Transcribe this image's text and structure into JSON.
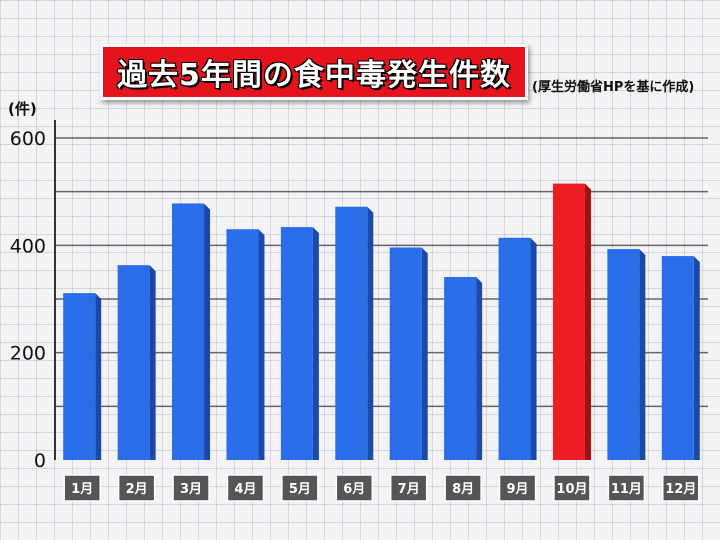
{
  "chart_data": {
    "type": "bar",
    "title": "過去5年間の食中毒発生件数",
    "subtitle": "(厚生労働省HPを基に作成)",
    "ylabel": "(件)",
    "categories": [
      "1月",
      "2月",
      "3月",
      "4月",
      "5月",
      "6月",
      "7月",
      "8月",
      "9月",
      "10月",
      "11月",
      "12月"
    ],
    "values": [
      311,
      363,
      478,
      430,
      434,
      472,
      396,
      341,
      414,
      515,
      393,
      380
    ],
    "ylim": [
      0,
      600
    ],
    "yticks": [
      0,
      200,
      400,
      600
    ],
    "highlight_index": 9,
    "grid": true,
    "colors": {
      "bar": "#2a6de8",
      "bar_side": "#1a4aa8",
      "highlight": "#ee1c24",
      "highlight_side": "#a50e12",
      "title_bg": "#e5141c",
      "label_box": "#555555"
    }
  }
}
